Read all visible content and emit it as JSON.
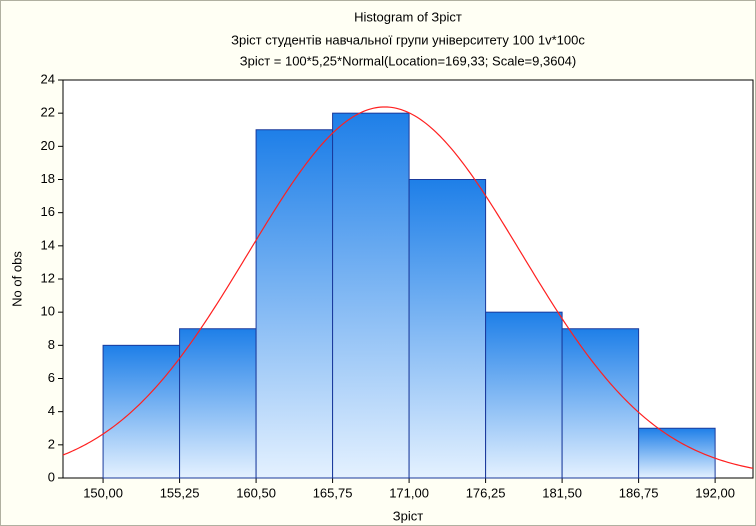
{
  "chart_data": {
    "type": "histogram",
    "title": "Histogram of Зрicт",
    "subtitle": "Зріст студентів навчальної групи університету 100 1v*100c",
    "formula": "Зрicт = 100*5,25*Normal(Location=169,33; Scale=9,3604)",
    "xlabel": "Зрicт",
    "ylabel": "No of obs",
    "bins": [
      150,
      155.25,
      160.5,
      165.75,
      171,
      176.25,
      181.5,
      186.75,
      192
    ],
    "values": [
      8,
      9,
      21,
      22,
      18,
      10,
      9,
      3
    ],
    "color": "#1e7fe8",
    "fit": {
      "n": 100,
      "bin_width": 5.25,
      "location": 169.33,
      "scale": 9.3604,
      "color": "#ff2020"
    },
    "xlim": [
      147.25,
      194.6
    ],
    "ylim": [
      0,
      24
    ],
    "xticks": [
      {
        "value": 150,
        "label": "150,00"
      },
      {
        "value": 155.25,
        "label": "155,25"
      },
      {
        "value": 160.5,
        "label": "160,50"
      },
      {
        "value": 165.75,
        "label": "165,75"
      },
      {
        "value": 171,
        "label": "171,00"
      },
      {
        "value": 176.25,
        "label": "176,25"
      },
      {
        "value": 181.5,
        "label": "181,50"
      },
      {
        "value": 186.75,
        "label": "186,75"
      },
      {
        "value": 192,
        "label": "192,00"
      }
    ],
    "yticks": [
      0,
      2,
      4,
      6,
      8,
      10,
      12,
      14,
      16,
      18,
      20,
      22,
      24
    ]
  }
}
